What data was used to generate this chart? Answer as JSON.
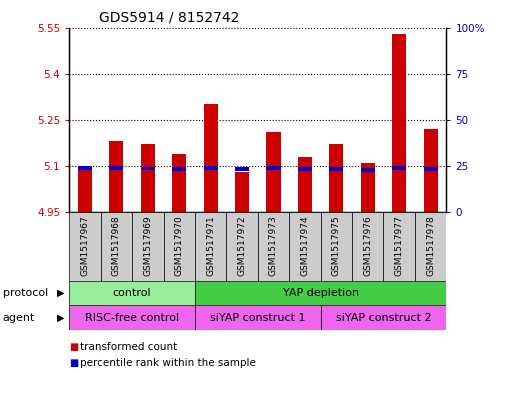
{
  "title": "GDS5914 / 8152742",
  "samples": [
    "GSM1517967",
    "GSM1517968",
    "GSM1517969",
    "GSM1517970",
    "GSM1517971",
    "GSM1517972",
    "GSM1517973",
    "GSM1517974",
    "GSM1517975",
    "GSM1517976",
    "GSM1517977",
    "GSM1517978"
  ],
  "bar_bottoms": [
    4.95,
    4.95,
    4.95,
    4.95,
    4.95,
    4.95,
    4.95,
    4.95,
    4.95,
    4.95,
    4.95,
    4.95
  ],
  "bar_tops": [
    5.09,
    5.18,
    5.17,
    5.14,
    5.3,
    5.08,
    5.21,
    5.13,
    5.17,
    5.11,
    5.53,
    5.22
  ],
  "percentile_values": [
    5.093,
    5.093,
    5.092,
    5.09,
    5.093,
    5.09,
    5.093,
    5.09,
    5.091,
    5.088,
    5.093,
    5.09
  ],
  "bar_color": "#cc0000",
  "percentile_color": "#0000cc",
  "ylim_left": [
    4.95,
    5.55
  ],
  "ylim_right": [
    0,
    100
  ],
  "yticks_left": [
    4.95,
    5.1,
    5.25,
    5.4,
    5.55
  ],
  "ytick_labels_left": [
    "4.95",
    "5.1",
    "5.25",
    "5.4",
    "5.55"
  ],
  "yticks_right": [
    0,
    25,
    50,
    75,
    100
  ],
  "ytick_labels_right": [
    "0",
    "25",
    "50",
    "75",
    "100%"
  ],
  "grid_color": "#000000",
  "protocol_groups": [
    {
      "label": "control",
      "start": 0,
      "end": 3,
      "color": "#99ee99"
    },
    {
      "label": "YAP depletion",
      "start": 4,
      "end": 11,
      "color": "#44cc44"
    }
  ],
  "agent_groups": [
    {
      "label": "RISC-free control",
      "start": 0,
      "end": 3,
      "color": "#ee66ee"
    },
    {
      "label": "siYAP construct 1",
      "start": 4,
      "end": 7,
      "color": "#ee66ee"
    },
    {
      "label": "siYAP construct 2",
      "start": 8,
      "end": 11,
      "color": "#ee66ee"
    }
  ],
  "legend_items": [
    {
      "label": "transformed count",
      "color": "#cc0000"
    },
    {
      "label": "percentile rank within the sample",
      "color": "#0000cc"
    }
  ],
  "protocol_label": "protocol",
  "agent_label": "agent",
  "bar_width": 0.45,
  "bg_color": "#ffffff",
  "tick_color_left": "#cc0000",
  "tick_color_right": "#0000cc",
  "plot_bg_color": "#ffffff",
  "xtick_bg_color": "#cccccc"
}
